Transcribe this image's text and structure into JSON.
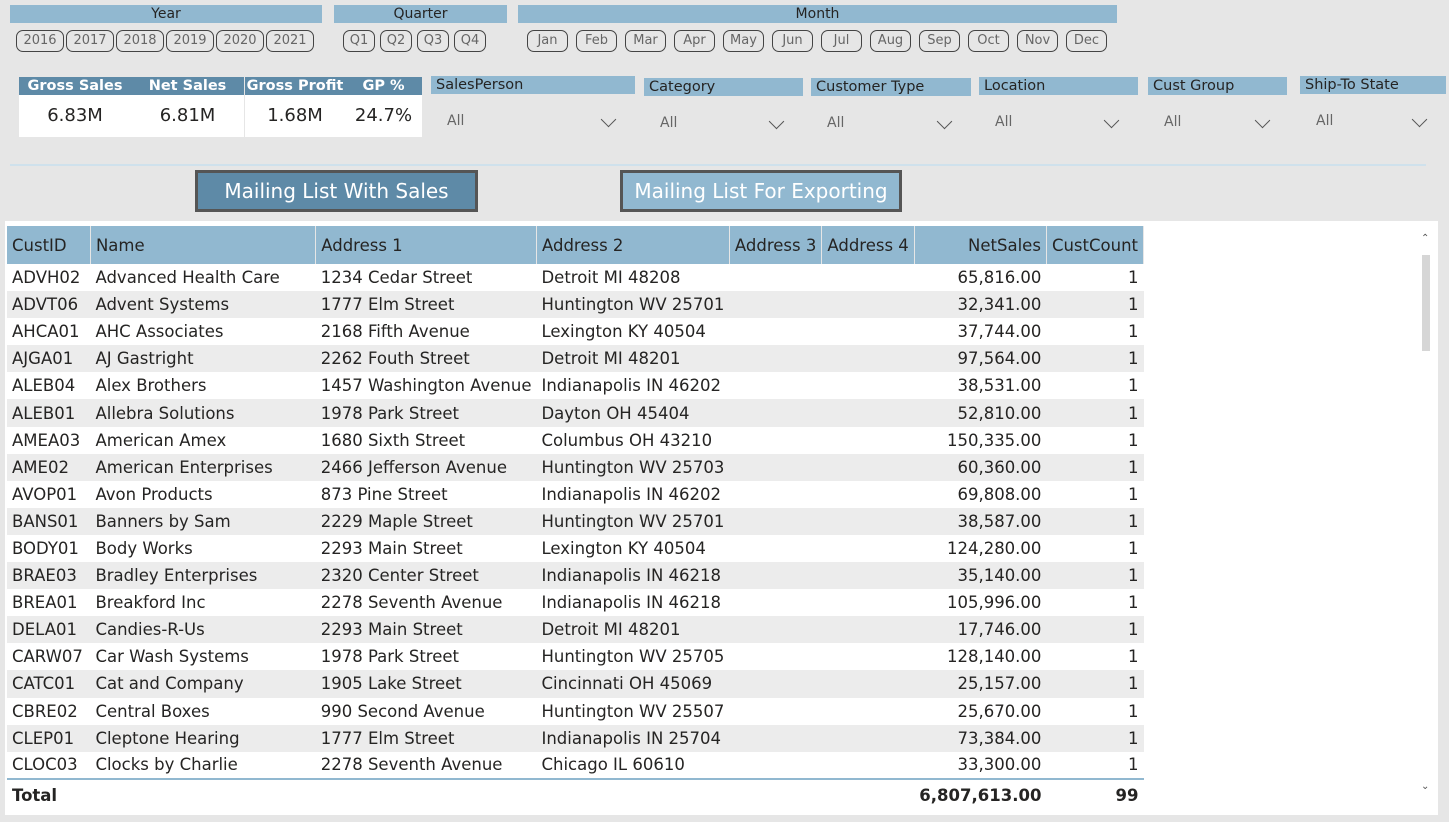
{
  "slicers": {
    "year": {
      "title": "Year",
      "options": [
        "2016",
        "2017",
        "2018",
        "2019",
        "2020",
        "2021"
      ]
    },
    "quarter": {
      "title": "Quarter",
      "options": [
        "Q1",
        "Q2",
        "Q3",
        "Q4"
      ]
    },
    "month": {
      "title": "Month",
      "options": [
        "Jan",
        "Feb",
        "Mar",
        "Apr",
        "May",
        "Jun",
        "Jul",
        "Aug",
        "Sep",
        "Oct",
        "Nov",
        "Dec"
      ]
    }
  },
  "kpis": [
    {
      "label": "Gross Sales",
      "value": "6.83M"
    },
    {
      "label": "Net Sales",
      "value": "6.81M"
    },
    {
      "label": "Gross Profit",
      "value": "1.68M"
    },
    {
      "label": "GP %",
      "value": "24.7%"
    }
  ],
  "filters": [
    {
      "title": "SalesPerson",
      "value": "All"
    },
    {
      "title": "Category",
      "value": "All"
    },
    {
      "title": "Customer Type",
      "value": "All"
    },
    {
      "title": "Location",
      "value": "All"
    },
    {
      "title": "Cust Group",
      "value": "All"
    },
    {
      "title": "Ship-To State",
      "value": "All"
    }
  ],
  "buttons": {
    "mailing_with_sales": "Mailing List With Sales",
    "mailing_for_export": "Mailing List For Exporting"
  },
  "table": {
    "columns": [
      "CustID",
      "Name",
      "Address 1",
      "Address 2",
      "Address 3",
      "Address 4",
      "NetSales",
      "CustCount"
    ],
    "rows": [
      [
        "ADVH02",
        "Advanced Health Care",
        "1234 Cedar Street",
        "Detroit MI 48208",
        "",
        "",
        "65,816.00",
        "1"
      ],
      [
        "ADVT06",
        "Advent Systems",
        "1777 Elm Street",
        "Huntington WV 25701",
        "",
        "",
        "32,341.00",
        "1"
      ],
      [
        "AHCA01",
        "AHC Associates",
        "2168 Fifth Avenue",
        "Lexington KY 40504",
        "",
        "",
        "37,744.00",
        "1"
      ],
      [
        "AJGA01",
        "AJ Gastright",
        "2262 Fouth Street",
        "Detroit MI 48201",
        "",
        "",
        "97,564.00",
        "1"
      ],
      [
        "ALEB04",
        "Alex Brothers",
        "1457 Washington Avenue",
        "Indianapolis IN 46202",
        "",
        "",
        "38,531.00",
        "1"
      ],
      [
        "ALEB01",
        "Allebra Solutions",
        "1978 Park Street",
        "Dayton OH 45404",
        "",
        "",
        "52,810.00",
        "1"
      ],
      [
        "AMEA03",
        "American Amex",
        "1680 Sixth Street",
        "Columbus OH 43210",
        "",
        "",
        "150,335.00",
        "1"
      ],
      [
        "AME02",
        "American Enterprises",
        "2466 Jefferson Avenue",
        "Huntington WV 25703",
        "",
        "",
        "60,360.00",
        "1"
      ],
      [
        "AVOP01",
        "Avon Products",
        "873 Pine Street",
        "Indianapolis IN 46202",
        "",
        "",
        "69,808.00",
        "1"
      ],
      [
        "BANS01",
        "Banners by Sam",
        "2229 Maple Street",
        "Huntington WV 25701",
        "",
        "",
        "38,587.00",
        "1"
      ],
      [
        "BODY01",
        "Body Works",
        "2293 Main Street",
        "Lexington KY 40504",
        "",
        "",
        "124,280.00",
        "1"
      ],
      [
        "BRAE03",
        "Bradley Enterprises",
        "2320 Center Street",
        "Indianapolis IN 46218",
        "",
        "",
        "35,140.00",
        "1"
      ],
      [
        "BREA01",
        "Breakford Inc",
        "2278 Seventh Avenue",
        "Indianapolis IN 46218",
        "",
        "",
        "105,996.00",
        "1"
      ],
      [
        "DELA01",
        "Candies-R-Us",
        "2293 Main Street",
        "Detroit MI 48201",
        "",
        "",
        "17,746.00",
        "1"
      ],
      [
        "CARW07",
        "Car Wash Systems",
        "1978 Park Street",
        "Huntington WV 25705",
        "",
        "",
        "128,140.00",
        "1"
      ],
      [
        "CATC01",
        "Cat and Company",
        "1905 Lake Street",
        "Cincinnati OH 45069",
        "",
        "",
        "25,157.00",
        "1"
      ],
      [
        "CBRE02",
        "Central Boxes",
        "990 Second Avenue",
        "Huntington WV 25507",
        "",
        "",
        "25,670.00",
        "1"
      ],
      [
        "CLEP01",
        "Cleptone Hearing",
        "1777 Elm Street",
        "Indianapolis IN 25704",
        "",
        "",
        "73,384.00",
        "1"
      ],
      [
        "CLOC03",
        "Clocks by Charlie",
        "2278 Seventh Avenue",
        "Chicago IL 60610",
        "",
        "",
        "33,300.00",
        "1"
      ]
    ],
    "total": {
      "label": "Total",
      "netsales": "6,807,613.00",
      "custcount": "99"
    }
  }
}
